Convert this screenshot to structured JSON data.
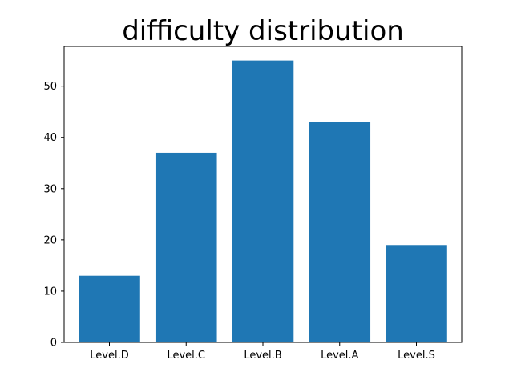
{
  "chart_data": {
    "type": "bar",
    "title": "difficulty distribution",
    "xlabel": "",
    "ylabel": "",
    "categories": [
      "Level.D",
      "Level.C",
      "Level.B",
      "Level.A",
      "Level.S"
    ],
    "values": [
      13,
      37,
      55,
      43,
      19
    ],
    "ylim": [
      0,
      57.75
    ],
    "yticks": [
      0,
      10,
      20,
      30,
      40,
      50
    ],
    "grid": false,
    "legend": "none",
    "colors": {
      "bar": "#1f77b4",
      "axes": "#000000",
      "background": "#ffffff"
    }
  }
}
